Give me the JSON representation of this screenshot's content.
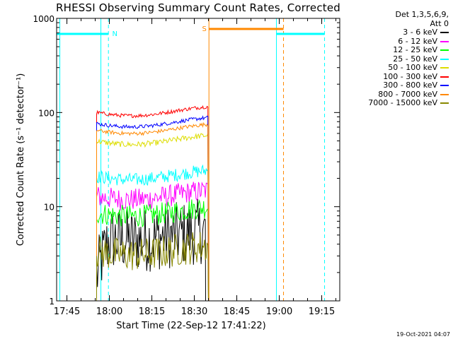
{
  "chart_data": {
    "type": "line",
    "title": "RHESSI Observing Summary Count Rates, Corrected",
    "xlabel": "Start Time (22-Sep-12 17:41:22)",
    "ylabel": "Corrected Count Rate (s⁻¹ detector⁻¹)",
    "yscale": "log",
    "ylim": [
      1,
      1000
    ],
    "xlim": [
      "17:41:22",
      "19:21:22"
    ],
    "x_ticks": [
      "17:45",
      "18:00",
      "18:15",
      "18:30",
      "18:45",
      "19:00",
      "19:15"
    ],
    "y_ticks": [
      "1",
      "10",
      "100",
      "1000"
    ],
    "legend_header": [
      "Det 1,3,5,6,9,",
      "Att 0"
    ],
    "legend_position": "right",
    "series": [
      {
        "name": "3 - 6 keV",
        "color": "#000000",
        "start": "17:55:30",
        "end": "18:34:00",
        "level": 5.0,
        "noise": 0.35
      },
      {
        "name": "6 - 12 keV",
        "color": "#ff00ff",
        "start": "17:55:30",
        "end": "18:35:00",
        "level": 13.5,
        "noise": 0.12
      },
      {
        "name": "12 - 25 keV",
        "color": "#00ff00",
        "start": "17:55:30",
        "end": "18:35:00",
        "level": 9.0,
        "noise": 0.12
      },
      {
        "name": "25 - 50 keV",
        "color": "#00ffff",
        "start": "17:55:30",
        "end": "18:35:00",
        "level": 22.0,
        "noise": 0.07
      },
      {
        "name": "50 - 100 keV",
        "color": "#dddd00",
        "start": "17:55:30",
        "end": "18:35:00",
        "level": 52.0,
        "noise": 0.03
      },
      {
        "name": "100 - 300 keV",
        "color": "#ff0000",
        "start": "17:55:30",
        "end": "18:35:00",
        "level": 105.0,
        "noise": 0.02
      },
      {
        "name": "300 - 800 keV",
        "color": "#0000ff",
        "start": "17:55:30",
        "end": "18:35:00",
        "level": 80.0,
        "noise": 0.02
      },
      {
        "name": "800 - 7000 keV",
        "color": "#ff8800",
        "start": "17:55:30",
        "end": "18:35:00",
        "level": 68.0,
        "noise": 0.02
      },
      {
        "name": "7000 - 15000 keV",
        "color": "#888800",
        "start": "17:55:30",
        "end": "18:35:00",
        "level": 3.5,
        "noise": 0.18
      }
    ],
    "annotations": [
      {
        "label": "N",
        "color": "#00ffff"
      },
      {
        "label": "S",
        "color": "#ff8800"
      }
    ],
    "timestamp": "19-Oct-2021 04:07"
  }
}
